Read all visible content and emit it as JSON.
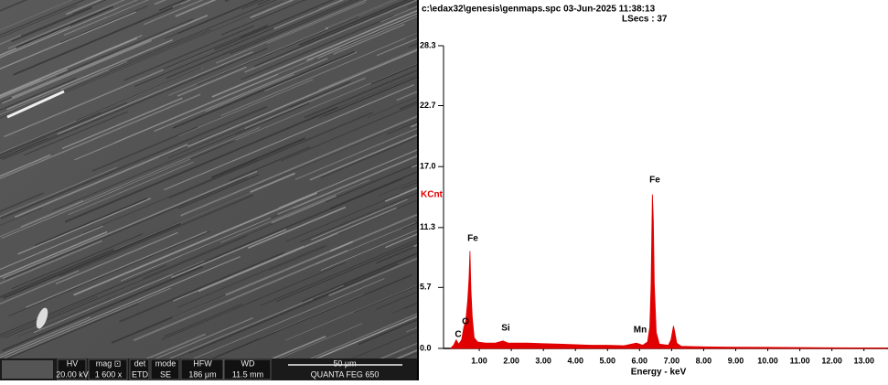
{
  "sem_image": {
    "labels": [
      "HV",
      "mag ⊡",
      "det",
      "mode",
      "HFW",
      "WD"
    ],
    "values": [
      "20.00 kV",
      "1 600 x",
      "ETD",
      "SE",
      "186 μm",
      "11.5 mm"
    ],
    "scale_bar": "50 μm",
    "instrument": "QUANTA FEG 650"
  },
  "chart_data": {
    "type": "area",
    "title": "c:\\edax32\\genesis\\genmaps.spc  03-Jun-2025 11:38:13",
    "subtitle": "LSecs :  37",
    "x_label": "Energy - keV",
    "y_label": "KCnt",
    "color": "#e00000",
    "annotations": [
      "C",
      "O",
      "Fe",
      "Si",
      "Mn",
      "Fe"
    ],
    "x": [
      0.1,
      0.2,
      0.28,
      0.36,
      0.45,
      0.52,
      0.58,
      0.64,
      0.68,
      0.71,
      0.74,
      0.78,
      0.84,
      0.95,
      1.2,
      1.5,
      1.74,
      1.9,
      2.5,
      3.0,
      3.5,
      4.0,
      4.5,
      5.0,
      5.5,
      5.9,
      6.1,
      6.25,
      6.32,
      6.36,
      6.4,
      6.43,
      6.46,
      6.52,
      6.62,
      6.9,
      6.98,
      7.04,
      7.06,
      7.1,
      7.16,
      7.3,
      8.0,
      9.0,
      10.0,
      11.0,
      12.0,
      13.0,
      13.7
    ],
    "values": [
      0.0,
      0.3,
      0.8,
      0.4,
      0.8,
      2.0,
      2.6,
      4.5,
      6.5,
      9.1,
      5.5,
      3.0,
      1.0,
      0.6,
      0.5,
      0.5,
      0.7,
      0.5,
      0.5,
      0.45,
      0.4,
      0.35,
      0.3,
      0.3,
      0.25,
      0.5,
      0.3,
      0.6,
      2.0,
      6.0,
      14.4,
      12.0,
      6.0,
      1.5,
      0.4,
      0.3,
      0.8,
      1.8,
      2.1,
      1.5,
      0.5,
      0.2,
      0.15,
      0.12,
      0.1,
      0.08,
      0.06,
      0.05,
      0.05
    ],
    "xlim": [
      0,
      13.75
    ],
    "ylim": [
      0,
      28.3
    ],
    "xticks": [
      {
        "value": 1,
        "label": "1.00"
      },
      {
        "value": 2,
        "label": "2.00"
      },
      {
        "value": 3,
        "label": "3.00"
      },
      {
        "value": 4,
        "label": "4.00"
      },
      {
        "value": 5,
        "label": "5.00"
      },
      {
        "value": 6,
        "label": "6.00"
      },
      {
        "value": 7,
        "label": "7.00"
      },
      {
        "value": 8,
        "label": "8.00"
      },
      {
        "value": 9,
        "label": "9.00"
      },
      {
        "value": 10,
        "label": "10.00"
      },
      {
        "value": 11,
        "label": "11.00"
      },
      {
        "value": 12,
        "label": "12.00"
      },
      {
        "value": 13,
        "label": "13.00"
      }
    ],
    "yticks": [
      {
        "value": 0,
        "label": "0.0"
      },
      5.7,
      11.3,
      {
        "value": 17,
        "label": "17.0"
      },
      22.7,
      28.3
    ]
  }
}
